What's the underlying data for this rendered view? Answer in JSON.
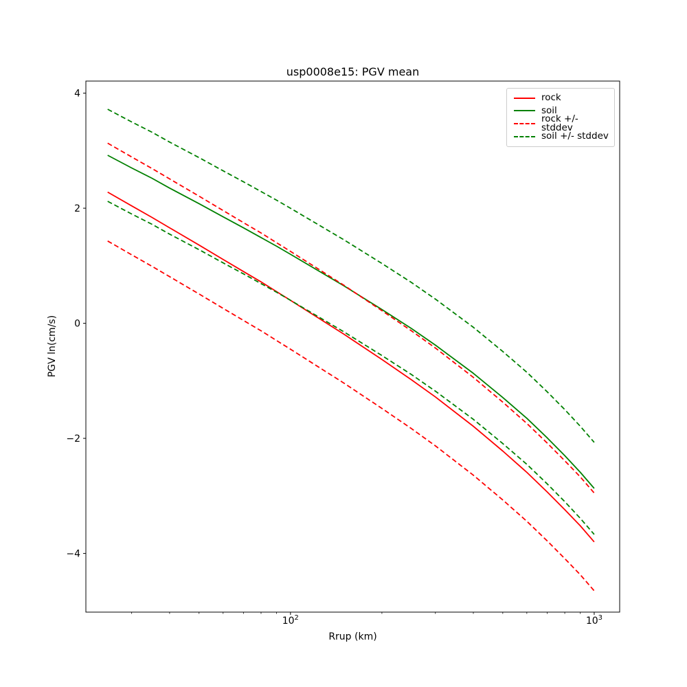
{
  "chart_data": {
    "type": "line",
    "title": "usp0008e15: PGV mean",
    "xlabel": "Rrup (km)",
    "ylabel": "PGV ln(cm/s)",
    "x_scale": "log",
    "grid": false,
    "xlim": [
      21.2,
      1213
    ],
    "ylim": [
      -5.02,
      4.21
    ],
    "x_ticks": [
      {
        "value": 100,
        "base": "10",
        "exp": "2"
      },
      {
        "value": 1000,
        "base": "10",
        "exp": "3"
      }
    ],
    "x_minor_ticks": [
      30,
      40,
      50,
      60,
      70,
      80,
      90,
      200,
      300,
      400,
      500,
      600,
      700,
      800,
      900
    ],
    "y_ticks": [
      {
        "value": 4,
        "label": "4"
      },
      {
        "value": 2,
        "label": "2"
      },
      {
        "value": 0,
        "label": "0"
      },
      {
        "value": -2,
        "label": "−2"
      },
      {
        "value": -4,
        "label": "−4"
      }
    ],
    "x": [
      25,
      30,
      35,
      40,
      50,
      60,
      70,
      80,
      90,
      100,
      150,
      200,
      250,
      300,
      400,
      500,
      600,
      700,
      800,
      900,
      1000
    ],
    "series": [
      {
        "name": "rock",
        "color": "#ff0000",
        "style": "solid",
        "values": [
          2.28,
          2.04,
          1.84,
          1.66,
          1.36,
          1.11,
          0.9,
          0.72,
          0.55,
          0.4,
          -0.19,
          -0.63,
          -0.98,
          -1.28,
          -1.79,
          -2.22,
          -2.59,
          -2.93,
          -3.24,
          -3.52,
          -3.8
        ]
      },
      {
        "name": "soil",
        "color": "#008000",
        "style": "solid",
        "values": [
          2.92,
          2.7,
          2.52,
          2.35,
          2.08,
          1.85,
          1.66,
          1.49,
          1.34,
          1.2,
          0.65,
          0.24,
          -0.09,
          -0.38,
          -0.87,
          -1.29,
          -1.65,
          -1.99,
          -2.3,
          -2.59,
          -2.87
        ]
      },
      {
        "name": "rock + stddev",
        "color": "#ff0000",
        "style": "dashed",
        "values": [
          3.13,
          2.89,
          2.69,
          2.51,
          2.21,
          1.96,
          1.75,
          1.57,
          1.4,
          1.25,
          0.66,
          0.22,
          -0.13,
          -0.43,
          -0.94,
          -1.37,
          -1.74,
          -2.08,
          -2.39,
          -2.67,
          -2.95
        ]
      },
      {
        "name": "rock - stddev",
        "color": "#ff0000",
        "style": "dashed",
        "values": [
          1.43,
          1.19,
          0.99,
          0.81,
          0.51,
          0.26,
          0.05,
          -0.13,
          -0.3,
          -0.45,
          -1.04,
          -1.48,
          -1.83,
          -2.13,
          -2.64,
          -3.07,
          -3.44,
          -3.78,
          -4.09,
          -4.37,
          -4.65
        ]
      },
      {
        "name": "soil + stddev",
        "color": "#008000",
        "style": "dashed",
        "values": [
          3.72,
          3.5,
          3.32,
          3.15,
          2.88,
          2.65,
          2.46,
          2.29,
          2.14,
          2.0,
          1.45,
          1.04,
          0.71,
          0.42,
          -0.07,
          -0.49,
          -0.85,
          -1.19,
          -1.5,
          -1.79,
          -2.07
        ]
      },
      {
        "name": "soil - stddev",
        "color": "#008000",
        "style": "dashed",
        "values": [
          2.12,
          1.9,
          1.72,
          1.55,
          1.28,
          1.05,
          0.86,
          0.69,
          0.54,
          0.4,
          -0.15,
          -0.56,
          -0.89,
          -1.18,
          -1.67,
          -2.09,
          -2.45,
          -2.79,
          -3.1,
          -3.39,
          -3.67
        ]
      }
    ],
    "legend": {
      "position": "upper right",
      "entries": [
        {
          "label": "rock",
          "color": "#ff0000",
          "style": "solid"
        },
        {
          "label": "soil",
          "color": "#008000",
          "style": "solid"
        },
        {
          "label": "rock +/- stddev",
          "color": "#ff0000",
          "style": "dashed"
        },
        {
          "label": "soil +/- stddev",
          "color": "#008000",
          "style": "dashed"
        }
      ]
    }
  }
}
